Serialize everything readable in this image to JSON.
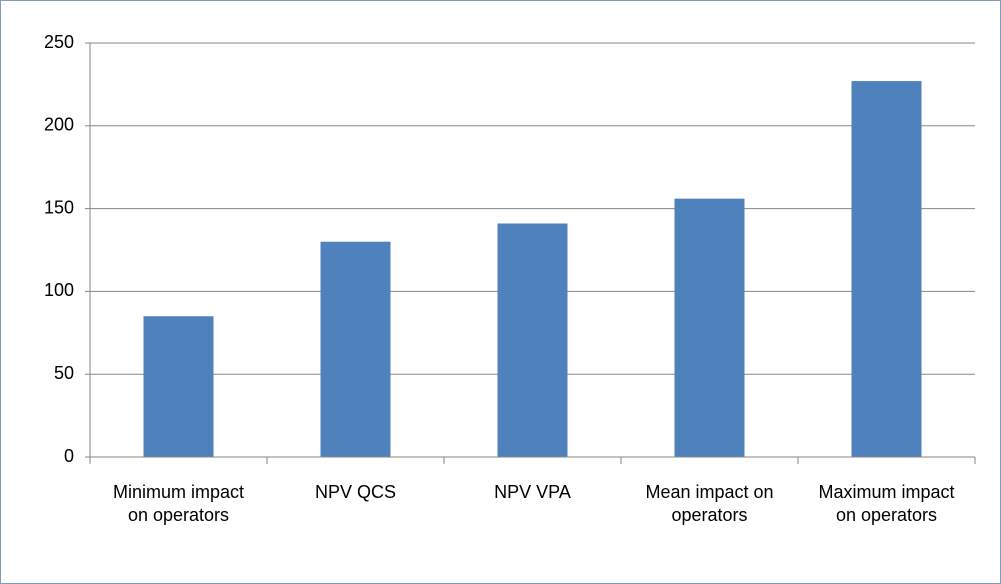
{
  "chart_data": {
    "type": "bar",
    "categories": [
      "Minimum impact on operators",
      "NPV QCS",
      "NPV VPA",
      "Mean impact on operators",
      "Maximum impact on operators"
    ],
    "values": [
      85,
      130,
      141,
      156,
      227
    ],
    "color": "#4f81bd",
    "ylim": [
      0,
      250
    ],
    "yticks": [
      0,
      50,
      100,
      150,
      200,
      250
    ],
    "grid": true
  }
}
